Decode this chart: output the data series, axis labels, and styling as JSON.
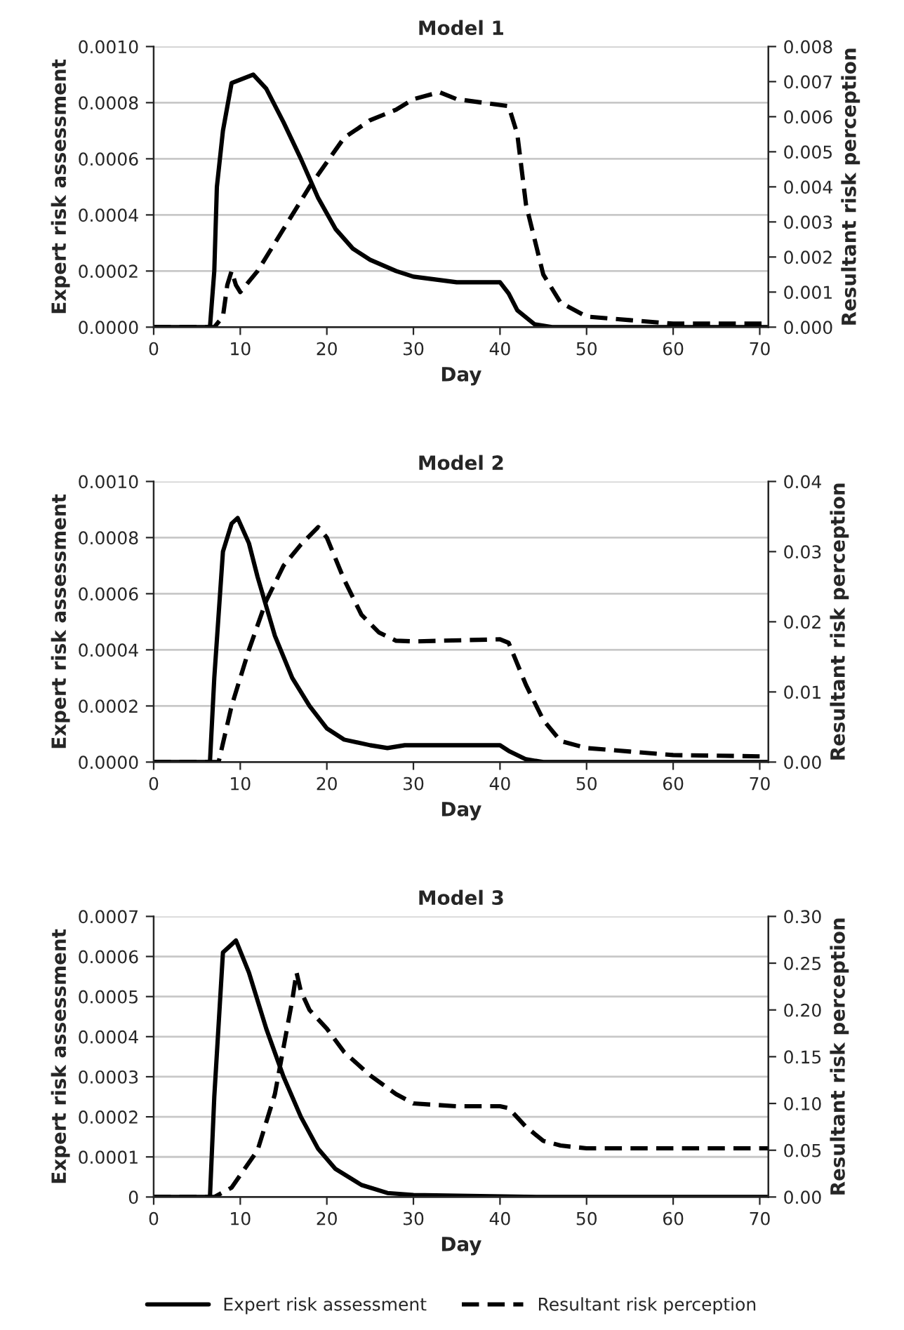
{
  "chart_data": [
    {
      "type": "line",
      "title": "Model 1",
      "xlabel": "Day",
      "ylabel": "Expert risk assessment",
      "y2label": "Resultant risk perception",
      "grid": "y",
      "xlim": [
        0,
        71
      ],
      "xticks": [
        0,
        10,
        20,
        30,
        40,
        50,
        60,
        70
      ],
      "ylim": [
        0,
        0.001
      ],
      "yticks": [
        {
          "value": 0,
          "label": "0.0000"
        },
        {
          "value": 0.0002,
          "label": "0.0002"
        },
        {
          "value": 0.0004,
          "label": "0.0004"
        },
        {
          "value": 0.0006,
          "label": "0.0006"
        },
        {
          "value": 0.0008,
          "label": "0.0008"
        },
        {
          "value": 0.001,
          "label": "0.0010"
        }
      ],
      "y2lim": [
        0,
        0.008
      ],
      "y2ticks": [
        {
          "value": 0,
          "label": "0.000"
        },
        {
          "value": 0.001,
          "label": "0.001"
        },
        {
          "value": 0.002,
          "label": "0.002"
        },
        {
          "value": 0.003,
          "label": "0.003"
        },
        {
          "value": 0.004,
          "label": "0.004"
        },
        {
          "value": 0.005,
          "label": "0.005"
        },
        {
          "value": 0.006,
          "label": "0.006"
        },
        {
          "value": 0.007,
          "label": "0.007"
        },
        {
          "value": 0.008,
          "label": "0.008"
        }
      ],
      "series": [
        {
          "color": "#000000",
          "line_style": "solid",
          "x": [
            0,
            6.5,
            7,
            7.3,
            8,
            9,
            11.5,
            13,
            15,
            17,
            19,
            21,
            23,
            25,
            28,
            30,
            35,
            40,
            41,
            42,
            44,
            46,
            71
          ],
          "values": [
            0,
            0,
            0.0002,
            0.0005,
            0.0007,
            0.00087,
            0.0009,
            0.00085,
            0.00073,
            0.0006,
            0.00046,
            0.00035,
            0.00028,
            0.00024,
            0.0002,
            0.00018,
            0.00016,
            0.00016,
            0.00012,
            6e-05,
            1e-05,
            0,
            0
          ]
        },
        {
          "color": "#000000",
          "line_style": "dashed",
          "axis": "y2",
          "x": [
            0,
            7,
            8,
            8.5,
            9,
            9.5,
            10,
            12,
            15,
            18,
            20,
            22,
            25,
            28,
            30,
            33,
            35,
            38,
            41,
            42,
            43,
            44,
            45,
            47,
            50,
            55,
            60,
            71
          ],
          "values": [
            0,
            0,
            0.0003,
            0.0012,
            0.0016,
            0.0012,
            0.001,
            0.0016,
            0.0028,
            0.004,
            0.0047,
            0.0054,
            0.0059,
            0.0062,
            0.0065,
            0.0067,
            0.0065,
            0.0064,
            0.0063,
            0.0055,
            0.0035,
            0.0025,
            0.0015,
            0.0007,
            0.0003,
            0.0002,
            0.0001,
            0.0001
          ]
        }
      ]
    },
    {
      "type": "line",
      "title": "Model 2",
      "xlabel": "Day",
      "ylabel": "Expert risk assessment",
      "y2label": "Resultant risk perception",
      "grid": "y",
      "xlim": [
        0,
        71
      ],
      "xticks": [
        0,
        10,
        20,
        30,
        40,
        50,
        60,
        70
      ],
      "ylim": [
        0,
        0.001
      ],
      "yticks": [
        {
          "value": 0,
          "label": "0.0000"
        },
        {
          "value": 0.0002,
          "label": "0.0002"
        },
        {
          "value": 0.0004,
          "label": "0.0004"
        },
        {
          "value": 0.0006,
          "label": "0.0006"
        },
        {
          "value": 0.0008,
          "label": "0.0008"
        },
        {
          "value": 0.001,
          "label": "0.0010"
        }
      ],
      "y2lim": [
        0,
        0.04
      ],
      "y2ticks": [
        {
          "value": 0,
          "label": "0.00"
        },
        {
          "value": 0.01,
          "label": "0.01"
        },
        {
          "value": 0.02,
          "label": "0.02"
        },
        {
          "value": 0.03,
          "label": "0.03"
        },
        {
          "value": 0.04,
          "label": "0.04"
        }
      ],
      "series": [
        {
          "color": "#000000",
          "line_style": "solid",
          "x": [
            0,
            6.5,
            7,
            8,
            9,
            9.7,
            11,
            12,
            14,
            16,
            18,
            20,
            22,
            25,
            27,
            29,
            40,
            41,
            43,
            45,
            71
          ],
          "values": [
            0,
            0,
            0.0003,
            0.00075,
            0.00085,
            0.00087,
            0.00078,
            0.00066,
            0.00045,
            0.0003,
            0.0002,
            0.00012,
            8e-05,
            6e-05,
            5e-05,
            6e-05,
            6e-05,
            4e-05,
            1e-05,
            0,
            0
          ]
        },
        {
          "color": "#000000",
          "line_style": "dashed",
          "axis": "y2",
          "x": [
            0,
            7.5,
            9,
            11,
            13,
            15,
            17,
            19,
            20,
            22,
            24,
            26,
            28,
            30,
            40,
            41,
            43,
            45,
            47,
            50,
            55,
            60,
            71
          ],
          "values": [
            0,
            0,
            0.008,
            0.016,
            0.023,
            0.028,
            0.031,
            0.0335,
            0.032,
            0.026,
            0.021,
            0.0185,
            0.0173,
            0.0172,
            0.0175,
            0.017,
            0.011,
            0.006,
            0.003,
            0.002,
            0.0015,
            0.001,
            0.0008
          ]
        }
      ]
    },
    {
      "type": "line",
      "title": "Model 3",
      "xlabel": "Day",
      "ylabel": "Expert risk assessment",
      "y2label": "Resultant risk perception",
      "grid": "y",
      "legend": "bottom",
      "xlim": [
        0,
        71
      ],
      "xticks": [
        0,
        10,
        20,
        30,
        40,
        50,
        60,
        70
      ],
      "ylim": [
        0,
        0.0007
      ],
      "yticks": [
        0,
        {
          "value": 0.0001,
          "label": "0.0001"
        },
        {
          "value": 0.0002,
          "label": "0.0002"
        },
        {
          "value": 0.0003,
          "label": "0.0003"
        },
        {
          "value": 0.0004,
          "label": "0.0004"
        },
        {
          "value": 0.0005,
          "label": "0.0005"
        },
        {
          "value": 0.0006,
          "label": "0.0006"
        },
        {
          "value": 0.0007,
          "label": "0.0007"
        }
      ],
      "y2lim": [
        0,
        0.3
      ],
      "y2ticks": [
        {
          "value": 0,
          "label": "0.00"
        },
        {
          "value": 0.05,
          "label": "0.05"
        },
        {
          "value": 0.1,
          "label": "0.10"
        },
        {
          "value": 0.15,
          "label": "0.15"
        },
        {
          "value": 0.2,
          "label": "0.20"
        },
        {
          "value": 0.25,
          "label": "0.25"
        },
        {
          "value": 0.3,
          "label": "0.30"
        }
      ],
      "series": [
        {
          "name": "Expert risk assessment",
          "color": "#000000",
          "line_style": "solid",
          "x": [
            0,
            6.5,
            7,
            8,
            9,
            9.5,
            11,
            13,
            15,
            17,
            19,
            21,
            24,
            27,
            30,
            45,
            71
          ],
          "values": [
            0,
            0,
            0.00025,
            0.00061,
            0.00063,
            0.00064,
            0.00056,
            0.00042,
            0.0003,
            0.0002,
            0.00012,
            7e-05,
            3e-05,
            1e-05,
            5e-06,
            0,
            0
          ]
        },
        {
          "name": "Resultant risk perception",
          "color": "#000000",
          "line_style": "dashed",
          "axis": "y2",
          "x": [
            0,
            7,
            9,
            12,
            14,
            15,
            16,
            16.5,
            17,
            18,
            20,
            22,
            25,
            28,
            30,
            35,
            40,
            41,
            43,
            45,
            47,
            50,
            71
          ],
          "values": [
            0,
            0,
            0.01,
            0.05,
            0.11,
            0.16,
            0.21,
            0.24,
            0.22,
            0.2,
            0.18,
            0.155,
            0.13,
            0.11,
            0.1,
            0.097,
            0.097,
            0.095,
            0.075,
            0.06,
            0.055,
            0.052,
            0.052
          ]
        }
      ]
    }
  ]
}
